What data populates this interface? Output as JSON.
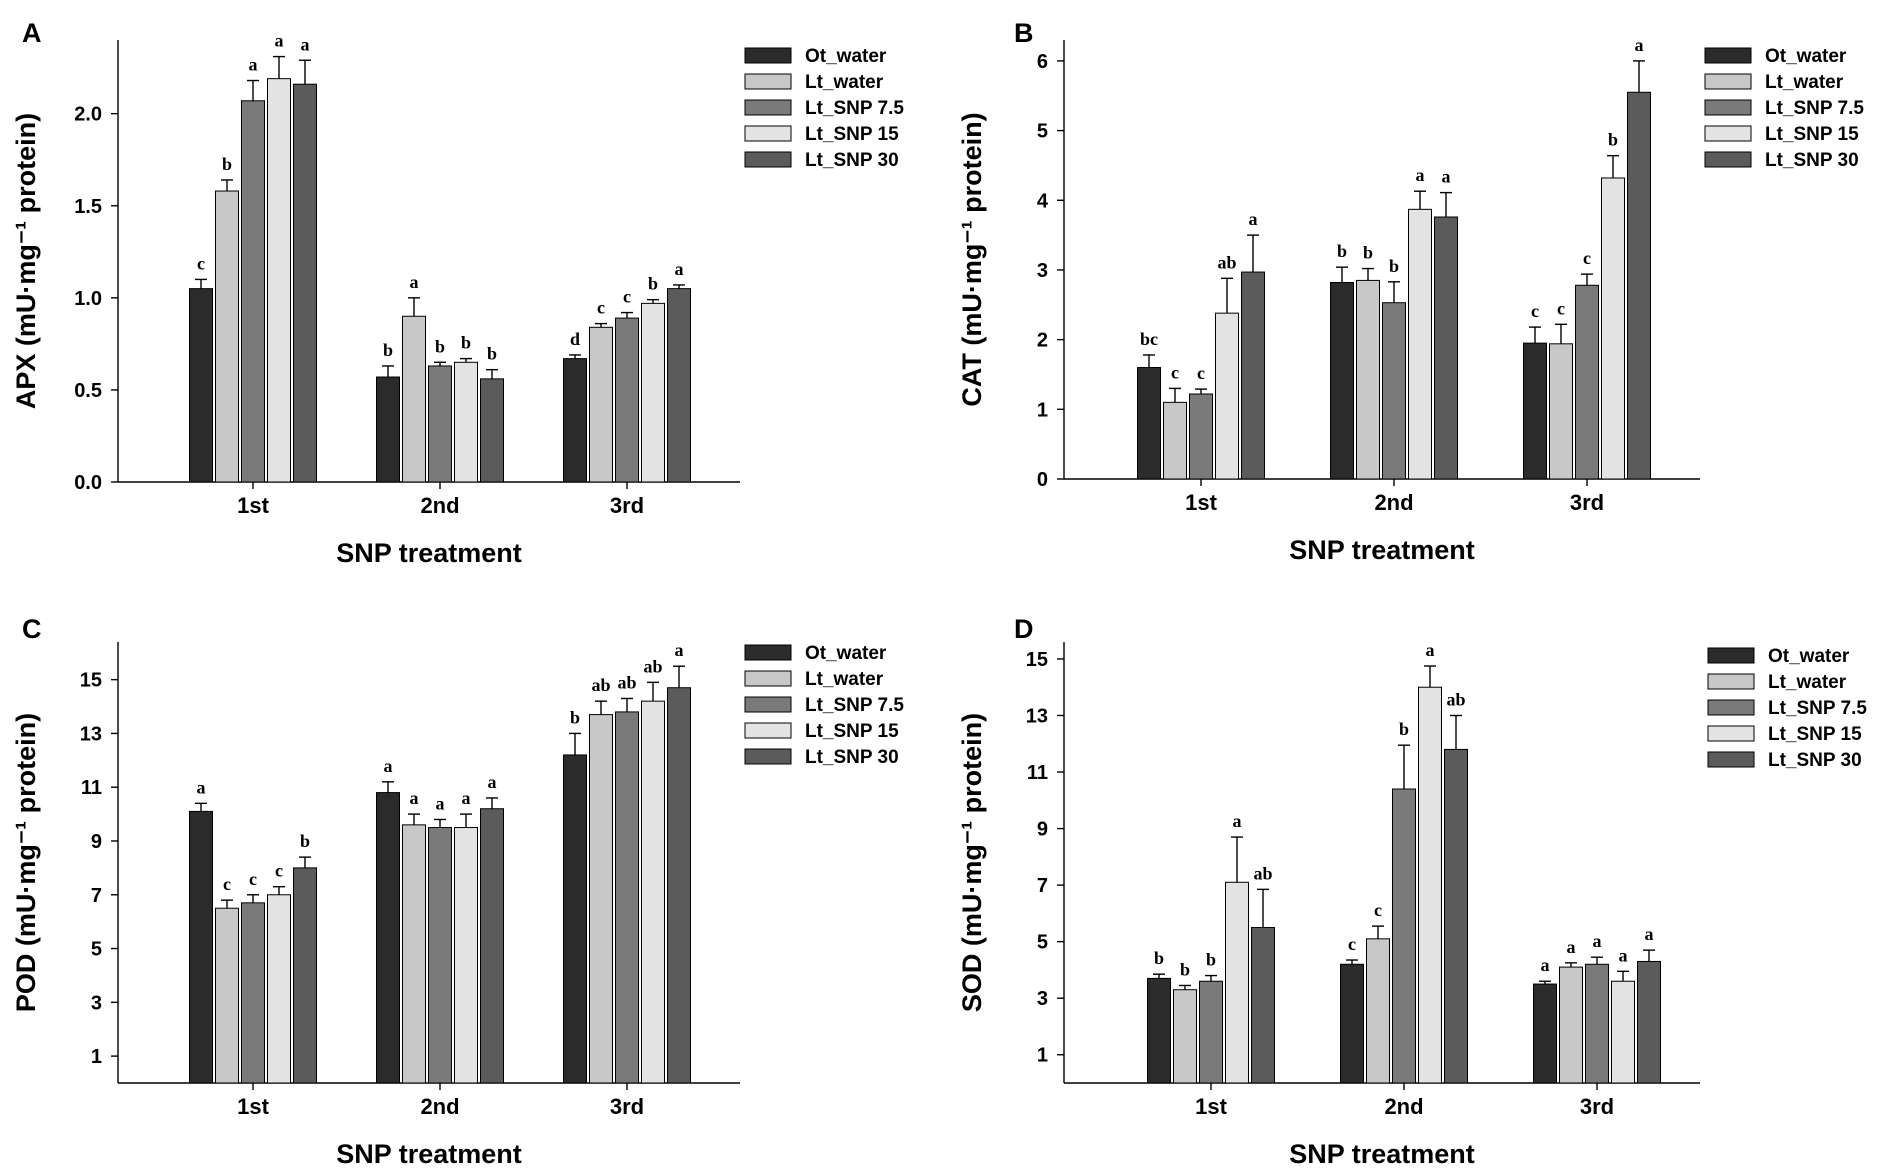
{
  "legend": [
    {
      "name": "Ot_water",
      "color": "#2b2b2b"
    },
    {
      "name": "Lt_water",
      "color": "#c8c8c8"
    },
    {
      "name": "Lt_SNP 7.5",
      "color": "#7a7a7a"
    },
    {
      "name": "Lt_SNP 15",
      "color": "#e3e3e3"
    },
    {
      "name": "Lt_SNP 30",
      "color": "#5b5b5b"
    }
  ],
  "chart_data": [
    {
      "panel": "A",
      "type": "bar",
      "xlabel": "SNP treatment",
      "ylabel": "APX (mU·mg⁻¹ protein)",
      "ylim": [
        0,
        2.4
      ],
      "yticks": [
        0.0,
        0.5,
        1.0,
        1.5,
        2.0
      ],
      "ytick_labels": [
        "0.0",
        "0.5",
        "1.0",
        "1.5",
        "2.0"
      ],
      "categories": [
        "1st",
        "2nd",
        "3rd"
      ],
      "series": [
        {
          "name": "Ot_water",
          "values": [
            1.05,
            0.57,
            0.67
          ],
          "errors": [
            0.05,
            0.06,
            0.02
          ],
          "labels": [
            "c",
            "b",
            "d"
          ]
        },
        {
          "name": "Lt_water",
          "values": [
            1.58,
            0.9,
            0.84
          ],
          "errors": [
            0.06,
            0.1,
            0.02
          ],
          "labels": [
            "b",
            "a",
            "c"
          ]
        },
        {
          "name": "Lt_SNP 7.5",
          "values": [
            2.07,
            0.63,
            0.89
          ],
          "errors": [
            0.11,
            0.02,
            0.03
          ],
          "labels": [
            "a",
            "b",
            "c"
          ]
        },
        {
          "name": "Lt_SNP 15",
          "values": [
            2.19,
            0.65,
            0.97
          ],
          "errors": [
            0.12,
            0.02,
            0.02
          ],
          "labels": [
            "a",
            "b",
            "b"
          ]
        },
        {
          "name": "Lt_SNP 30",
          "values": [
            2.16,
            0.56,
            1.05
          ],
          "errors": [
            0.13,
            0.05,
            0.02
          ],
          "labels": [
            "a",
            "b",
            "a"
          ]
        }
      ]
    },
    {
      "panel": "B",
      "type": "bar",
      "xlabel": "SNP treatment",
      "ylabel": "CAT (mU·mg⁻¹ protein)",
      "ylim": [
        0,
        6.3
      ],
      "yticks": [
        0,
        1,
        2,
        3,
        4,
        5,
        6
      ],
      "ytick_labels": [
        "0",
        "1",
        "2",
        "3",
        "4",
        "5",
        "6"
      ],
      "categories": [
        "1st",
        "2nd",
        "3rd"
      ],
      "series": [
        {
          "name": "Ot_water",
          "values": [
            1.6,
            2.82,
            1.95
          ],
          "errors": [
            0.18,
            0.22,
            0.23
          ],
          "labels": [
            "bc",
            "b",
            "c"
          ]
        },
        {
          "name": "Lt_water",
          "values": [
            1.1,
            2.85,
            1.94
          ],
          "errors": [
            0.2,
            0.17,
            0.28
          ],
          "labels": [
            "c",
            "b",
            "c"
          ]
        },
        {
          "name": "Lt_SNP 7.5",
          "values": [
            1.22,
            2.53,
            2.78
          ],
          "errors": [
            0.07,
            0.3,
            0.16
          ],
          "labels": [
            "c",
            "b",
            "c"
          ]
        },
        {
          "name": "Lt_SNP 15",
          "values": [
            2.38,
            3.87,
            4.32
          ],
          "errors": [
            0.5,
            0.26,
            0.32
          ],
          "labels": [
            "ab",
            "a",
            "b"
          ]
        },
        {
          "name": "Lt_SNP 30",
          "values": [
            2.97,
            3.76,
            5.55
          ],
          "errors": [
            0.53,
            0.35,
            0.45
          ],
          "labels": [
            "a",
            "a",
            "a"
          ]
        }
      ]
    },
    {
      "panel": "C",
      "type": "bar",
      "xlabel": "SNP treatment",
      "ylabel": "POD (mU·mg⁻¹ protein)",
      "ylim": [
        0,
        16.4
      ],
      "yticks": [
        1,
        3,
        5,
        7,
        9,
        11,
        13,
        15
      ],
      "ytick_labels": [
        "1",
        "3",
        "5",
        "7",
        "9",
        "11",
        "13",
        "15"
      ],
      "categories": [
        "1st",
        "2nd",
        "3rd"
      ],
      "series": [
        {
          "name": "Ot_water",
          "values": [
            10.1,
            10.8,
            12.2
          ],
          "errors": [
            0.3,
            0.4,
            0.8
          ],
          "labels": [
            "a",
            "a",
            "b"
          ]
        },
        {
          "name": "Lt_water",
          "values": [
            6.5,
            9.6,
            13.7
          ],
          "errors": [
            0.3,
            0.4,
            0.5
          ],
          "labels": [
            "c",
            "a",
            "ab"
          ]
        },
        {
          "name": "Lt_SNP 7.5",
          "values": [
            6.7,
            9.5,
            13.8
          ],
          "errors": [
            0.3,
            0.3,
            0.5
          ],
          "labels": [
            "c",
            "a",
            "ab"
          ]
        },
        {
          "name": "Lt_SNP 15",
          "values": [
            7.0,
            9.5,
            14.2
          ],
          "errors": [
            0.3,
            0.5,
            0.7
          ],
          "labels": [
            "c",
            "a",
            "ab"
          ]
        },
        {
          "name": "Lt_SNP 30",
          "values": [
            8.0,
            10.2,
            14.7
          ],
          "errors": [
            0.4,
            0.4,
            0.8
          ],
          "labels": [
            "b",
            "a",
            "a"
          ]
        }
      ]
    },
    {
      "panel": "D",
      "type": "bar",
      "xlabel": "SNP treatment",
      "ylabel": "SOD (mU·mg⁻¹ protein)",
      "ylim": [
        0,
        15.6
      ],
      "yticks": [
        1,
        3,
        5,
        7,
        9,
        11,
        13,
        15
      ],
      "ytick_labels": [
        "1",
        "3",
        "5",
        "7",
        "9",
        "11",
        "13",
        "15"
      ],
      "categories": [
        "1st",
        "2nd",
        "3rd"
      ],
      "series": [
        {
          "name": "Ot_water",
          "values": [
            3.7,
            4.2,
            3.5
          ],
          "errors": [
            0.15,
            0.15,
            0.1
          ],
          "labels": [
            "b",
            "c",
            "a"
          ]
        },
        {
          "name": "Lt_water",
          "values": [
            3.3,
            5.1,
            4.1
          ],
          "errors": [
            0.15,
            0.45,
            0.15
          ],
          "labels": [
            "b",
            "c",
            "a"
          ]
        },
        {
          "name": "Lt_SNP 7.5",
          "values": [
            3.6,
            10.4,
            4.2
          ],
          "errors": [
            0.2,
            1.55,
            0.25
          ],
          "labels": [
            "b",
            "b",
            "a"
          ]
        },
        {
          "name": "Lt_SNP 15",
          "values": [
            7.1,
            14.0,
            3.6
          ],
          "errors": [
            1.6,
            0.75,
            0.35
          ],
          "labels": [
            "a",
            "a",
            "a"
          ]
        },
        {
          "name": "Lt_SNP 30",
          "values": [
            5.5,
            11.8,
            4.3
          ],
          "errors": [
            1.35,
            1.2,
            0.4
          ],
          "labels": [
            "ab",
            "ab",
            "a"
          ]
        }
      ]
    }
  ]
}
